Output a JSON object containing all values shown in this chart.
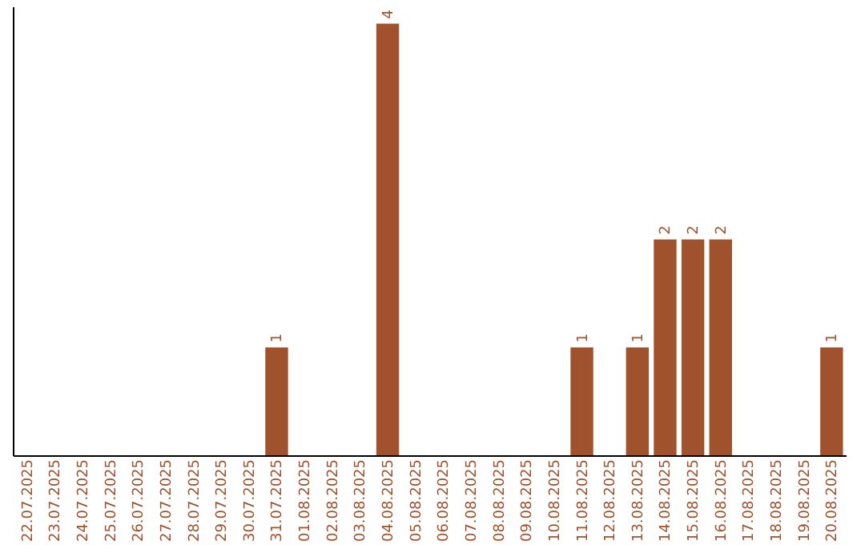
{
  "chart_data": {
    "type": "bar",
    "categories": [
      "22.07.2025",
      "23.07.2025",
      "24.07.2025",
      "25.07.2025",
      "26.07.2025",
      "27.07.2025",
      "28.07.2025",
      "29.07.2025",
      "30.07.2025",
      "31.07.2025",
      "01.08.2025",
      "02.08.2025",
      "03.08.2025",
      "04.08.2025",
      "05.08.2025",
      "06.08.2025",
      "07.08.2025",
      "08.08.2025",
      "09.08.2025",
      "10.08.2025",
      "11.08.2025",
      "12.08.2025",
      "13.08.2025",
      "14.08.2025",
      "15.08.2025",
      "16.08.2025",
      "17.08.2025",
      "18.08.2025",
      "19.08.2025",
      "20.08.2025"
    ],
    "values": [
      0,
      0,
      0,
      0,
      0,
      0,
      0,
      0,
      0,
      1,
      0,
      0,
      0,
      4,
      0,
      0,
      0,
      0,
      0,
      0,
      1,
      0,
      1,
      2,
      2,
      2,
      0,
      0,
      0,
      1
    ],
    "value_labels": [
      null,
      null,
      null,
      null,
      null,
      null,
      null,
      null,
      null,
      "1",
      null,
      null,
      null,
      "4",
      null,
      null,
      null,
      null,
      null,
      null,
      "1",
      null,
      "1",
      "2",
      "2",
      "2",
      null,
      null,
      null,
      "1"
    ],
    "color": "#a0522d",
    "grid": false
  }
}
